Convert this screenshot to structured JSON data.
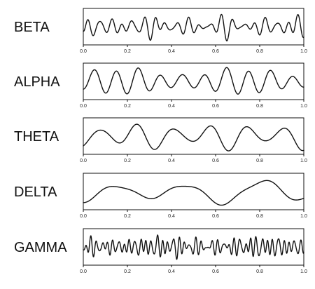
{
  "chart_data": [
    {
      "type": "line",
      "label": "BETA",
      "xlim": [
        0.0,
        1.0
      ],
      "ylim": [
        -1,
        1
      ],
      "xticks": [
        "0.0",
        "0.2",
        "0.4",
        "0.6",
        "0.8",
        "1.0"
      ],
      "waveform": {
        "frequency_hz": 20,
        "variability": "irregular"
      }
    },
    {
      "type": "line",
      "label": "ALPHA",
      "xlim": [
        0.0,
        1.0
      ],
      "ylim": [
        -1,
        1
      ],
      "xticks": [
        "0.0",
        "0.2",
        "0.4",
        "0.6",
        "0.8",
        "1.0"
      ],
      "waveform": {
        "frequency_hz": 10,
        "variability": "moderate"
      }
    },
    {
      "type": "line",
      "label": "THETA",
      "xlim": [
        0.0,
        1.0
      ],
      "ylim": [
        -1,
        1
      ],
      "xticks": [
        "0.0",
        "0.2",
        "0.4",
        "0.6",
        "0.8",
        "1.0"
      ],
      "waveform": {
        "frequency_hz": 6,
        "variability": "moderate"
      }
    },
    {
      "type": "line",
      "label": "DELTA",
      "xlim": [
        0.0,
        1.0
      ],
      "ylim": [
        -1,
        1
      ],
      "xticks": [
        "0.0",
        "0.2",
        "0.4",
        "0.6",
        "0.8",
        "1.0"
      ],
      "waveform": {
        "frequency_hz": 3,
        "variability": "smooth"
      }
    },
    {
      "type": "line",
      "label": "GAMMA",
      "xlim": [
        0.0,
        1.0
      ],
      "ylim": [
        -1,
        1
      ],
      "xticks": [
        "0.0",
        "0.2",
        "0.4",
        "0.6",
        "0.8",
        "1.0"
      ],
      "waveform": {
        "frequency_hz": 40,
        "variability": "irregular"
      }
    }
  ],
  "colors": {
    "line": "#111111",
    "background": "#ffffff"
  }
}
